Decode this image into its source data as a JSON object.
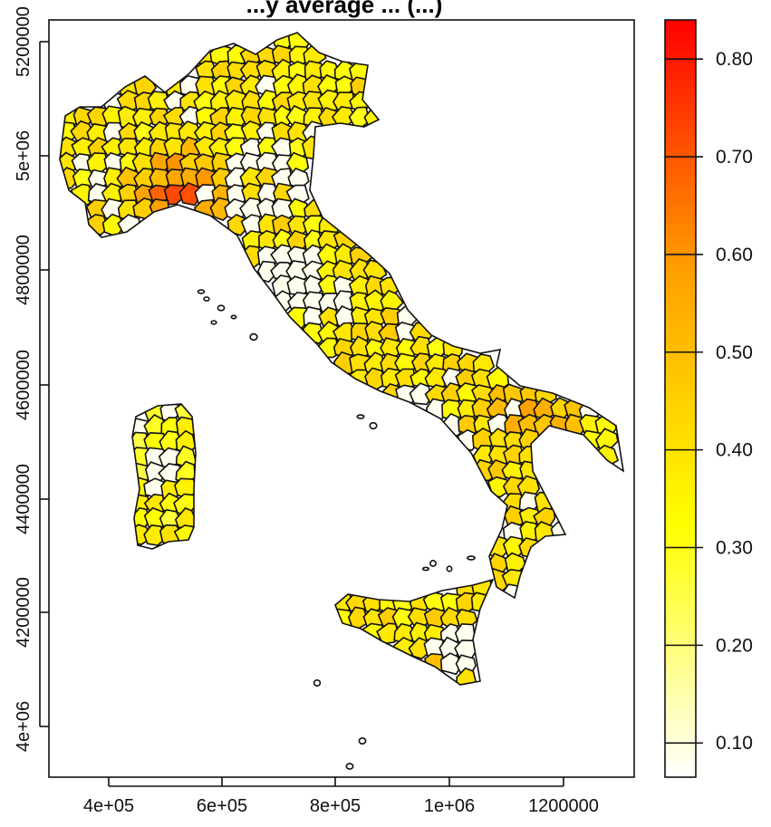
{
  "title": "...y average ... (...)",
  "x_ticks": [
    "4e+05",
    "6e+05",
    "8e+05",
    "1e+06",
    "1200000"
  ],
  "y_ticks": [
    "4e+06",
    "4200000",
    "4400000",
    "4600000",
    "4800000",
    "5e+06",
    "5200000"
  ],
  "legend": {
    "ticks": [
      "0.10",
      "0.20",
      "0.30",
      "0.40",
      "0.50",
      "0.60",
      "0.70",
      "0.80"
    ],
    "range": [
      0.065,
      0.84
    ],
    "colors": [
      "#ffffff",
      "#ffff00",
      "#ffa000",
      "#ff0000"
    ]
  },
  "map": {
    "subject": "Italy choropleth by municipality",
    "xlim": [
      300000,
      1320000
    ],
    "ylim": [
      3910000,
      5225000
    ]
  }
}
